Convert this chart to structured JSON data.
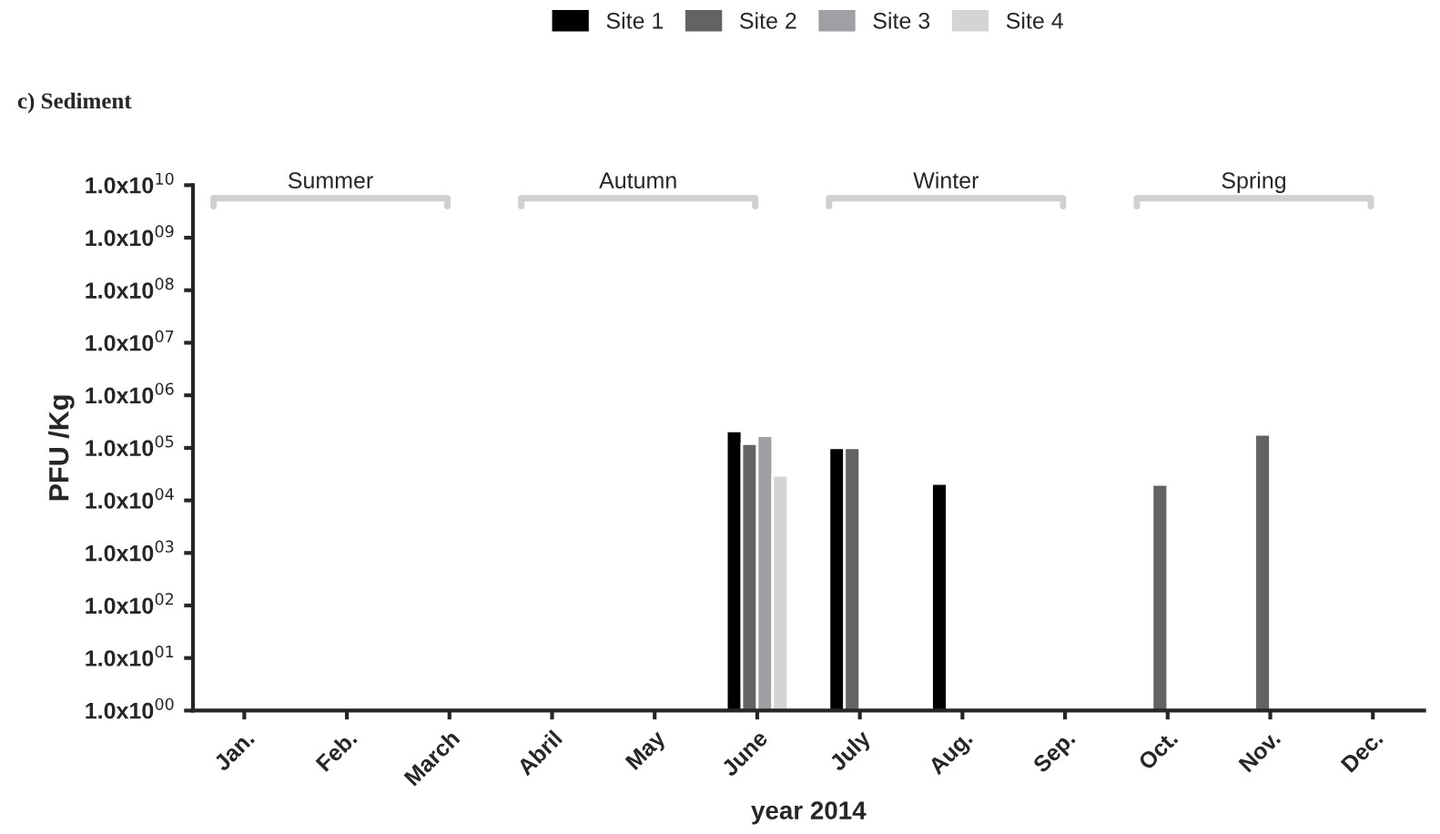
{
  "chart_data": {
    "type": "bar",
    "title": "c) Sediment",
    "xlabel": "year 2014",
    "ylabel": "PFU /Kg",
    "categories": [
      "Jan.",
      "Feb.",
      "March",
      "Abril",
      "May",
      "June",
      "July",
      "Aug.",
      "Sep.",
      "Oct.",
      "Nov.",
      "Dec."
    ],
    "series": [
      {
        "name": "Site 1",
        "color": "#000000",
        "values": [
          null,
          null,
          null,
          null,
          null,
          210000,
          100000,
          21000,
          null,
          null,
          null,
          null
        ]
      },
      {
        "name": "Site 2",
        "color": "#636363",
        "values": [
          null,
          null,
          null,
          null,
          null,
          120000,
          100000,
          null,
          null,
          20000,
          180000,
          null
        ]
      },
      {
        "name": "Site 3",
        "color": "#a0a0a4",
        "values": [
          null,
          null,
          null,
          null,
          null,
          170000,
          null,
          null,
          null,
          null,
          null,
          null
        ]
      },
      {
        "name": "Site 4",
        "color": "#d4d4d4",
        "values": [
          null,
          null,
          null,
          null,
          null,
          30000,
          null,
          null,
          null,
          null,
          null,
          null
        ]
      }
    ],
    "log": true,
    "ylim": [
      1,
      10000000000
    ],
    "yticks": [
      {
        "value": 1,
        "label": "1.0x10$^{00}$"
      },
      {
        "value": 10,
        "label": "1.0x10$^{01}$"
      },
      {
        "value": 100,
        "label": "1.0x10$^{02}$"
      },
      {
        "value": 1000,
        "label": "1.0x10$^{03}$"
      },
      {
        "value": 10000,
        "label": "1.0x10$^{04}$"
      },
      {
        "value": 100000,
        "label": "1.0x10$^{05}$"
      },
      {
        "value": 1000000,
        "label": "1.0x10$^{06}$"
      },
      {
        "value": 10000000,
        "label": "1.0x10$^{07}$"
      },
      {
        "value": 100000000,
        "label": "1.0x10$^{08}$"
      },
      {
        "value": 1000000000,
        "label": "1.0x10$^{09}$"
      },
      {
        "value": 10000000000,
        "label": "1.0x10$^{10}$"
      }
    ],
    "annotations": [
      "Summer",
      "Autumn",
      "Winter",
      "Spring"
    ],
    "grid": false,
    "legend": "top"
  }
}
